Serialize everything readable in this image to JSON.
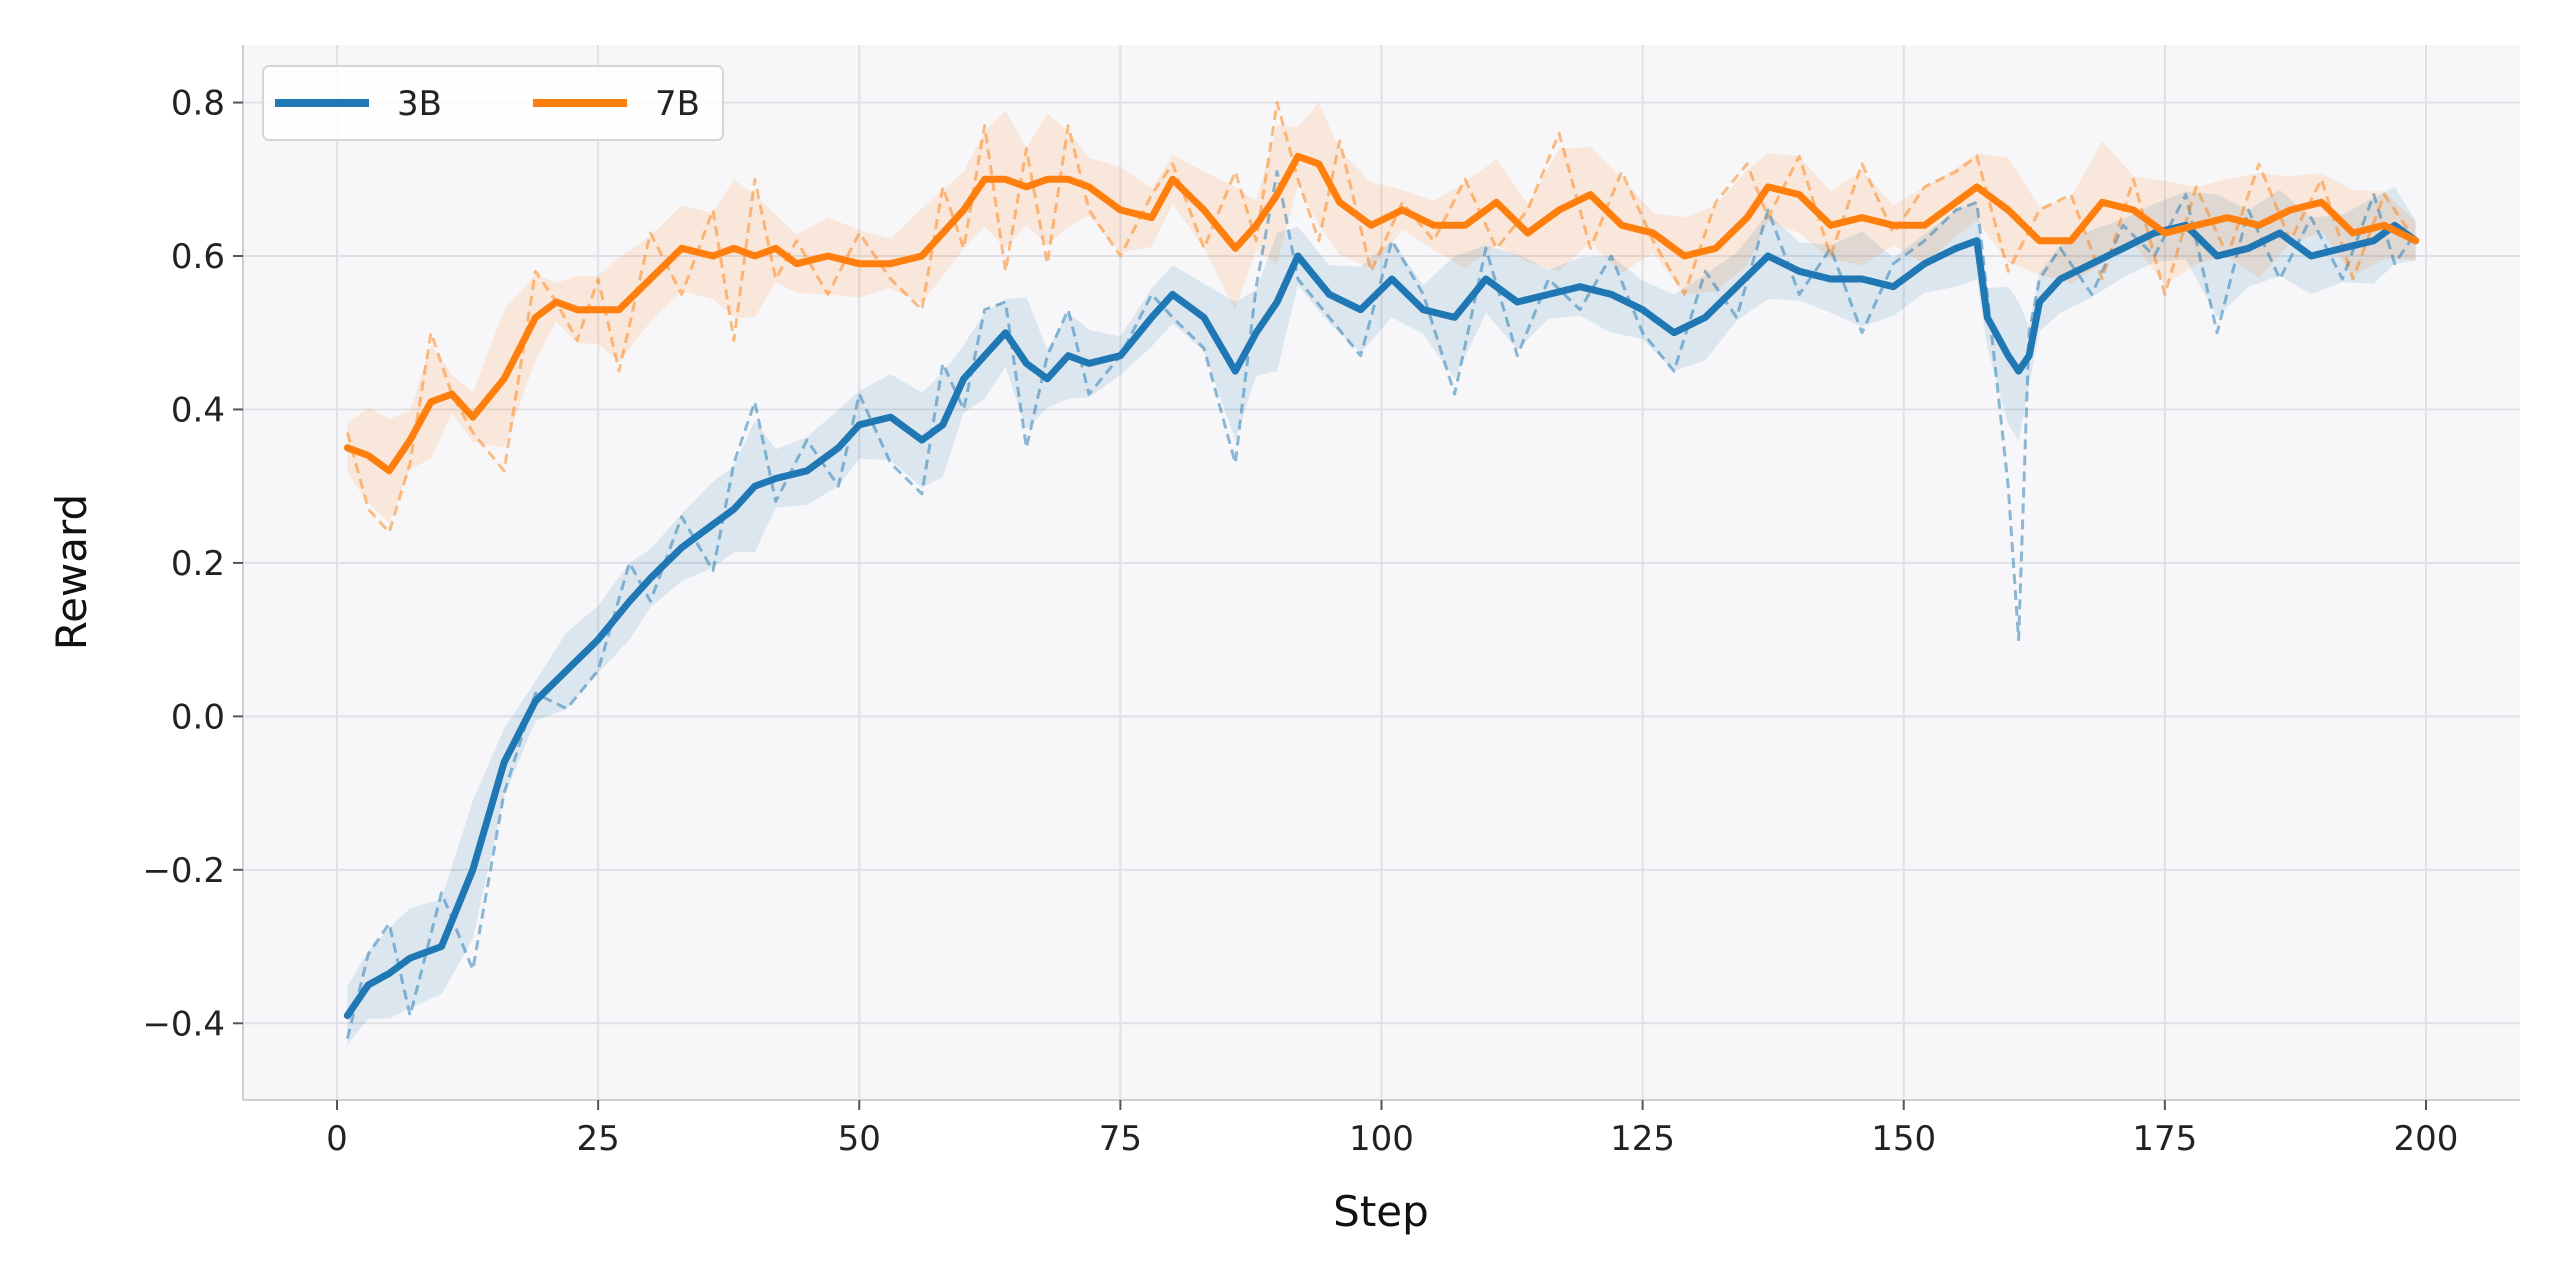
{
  "chart_data": {
    "type": "line",
    "xlabel": "Step",
    "ylabel": "Reward",
    "xlim": [
      -9,
      209
    ],
    "ylim": [
      -0.5,
      0.875
    ],
    "xticks": [
      0,
      25,
      50,
      75,
      100,
      125,
      150,
      175,
      200
    ],
    "yticks": [
      -0.4,
      -0.2,
      0.0,
      0.2,
      0.4,
      0.6,
      0.8
    ],
    "ytick_labels": [
      "−0.4",
      "−0.2",
      "0.0",
      "0.2",
      "0.4",
      "0.6",
      "0.8"
    ],
    "grid": true,
    "legend_position": "top-left",
    "series": [
      {
        "name": "3B",
        "color": "#1f77b4",
        "x": [
          1,
          3,
          5,
          7,
          10,
          13,
          16,
          19,
          22,
          25,
          28,
          30,
          33,
          36,
          38,
          40,
          42,
          45,
          48,
          50,
          53,
          56,
          58,
          60,
          62,
          64,
          66,
          68,
          70,
          72,
          75,
          78,
          80,
          83,
          86,
          88,
          90,
          92,
          95,
          98,
          101,
          104,
          107,
          110,
          113,
          116,
          119,
          122,
          125,
          128,
          131,
          134,
          137,
          140,
          143,
          146,
          149,
          152,
          155,
          157,
          158,
          160,
          161,
          162,
          163,
          165,
          168,
          171,
          174,
          177,
          180,
          183,
          186,
          189,
          192,
          195,
          197,
          199
        ],
        "smoothed": [
          -0.39,
          -0.35,
          -0.335,
          -0.315,
          -0.3,
          -0.2,
          -0.06,
          0.02,
          0.06,
          0.1,
          0.15,
          0.18,
          0.22,
          0.25,
          0.27,
          0.3,
          0.31,
          0.32,
          0.35,
          0.38,
          0.39,
          0.36,
          0.38,
          0.44,
          0.47,
          0.5,
          0.46,
          0.44,
          0.47,
          0.46,
          0.47,
          0.52,
          0.55,
          0.52,
          0.45,
          0.5,
          0.54,
          0.6,
          0.55,
          0.53,
          0.57,
          0.53,
          0.52,
          0.57,
          0.54,
          0.55,
          0.56,
          0.55,
          0.53,
          0.5,
          0.52,
          0.56,
          0.6,
          0.58,
          0.57,
          0.57,
          0.56,
          0.59,
          0.61,
          0.62,
          0.52,
          0.47,
          0.45,
          0.47,
          0.54,
          0.57,
          0.59,
          0.61,
          0.63,
          0.64,
          0.6,
          0.61,
          0.63,
          0.6,
          0.61,
          0.62,
          0.64,
          0.62
        ],
        "raw": [
          -0.42,
          -0.31,
          -0.27,
          -0.39,
          -0.23,
          -0.33,
          -0.1,
          0.03,
          0.01,
          0.06,
          0.2,
          0.15,
          0.26,
          0.19,
          0.33,
          0.41,
          0.28,
          0.36,
          0.3,
          0.42,
          0.33,
          0.29,
          0.46,
          0.4,
          0.53,
          0.54,
          0.35,
          0.47,
          0.53,
          0.42,
          0.47,
          0.55,
          0.52,
          0.48,
          0.33,
          0.56,
          0.71,
          0.57,
          0.52,
          0.47,
          0.62,
          0.55,
          0.42,
          0.61,
          0.47,
          0.57,
          0.53,
          0.6,
          0.5,
          0.45,
          0.58,
          0.52,
          0.66,
          0.55,
          0.61,
          0.5,
          0.59,
          0.62,
          0.66,
          0.67,
          0.55,
          0.3,
          0.1,
          0.5,
          0.57,
          0.61,
          0.55,
          0.64,
          0.6,
          0.68,
          0.5,
          0.66,
          0.57,
          0.65,
          0.57,
          0.68,
          0.59,
          0.63
        ]
      },
      {
        "name": "7B",
        "color": "#ff7f0e",
        "x": [
          1,
          3,
          5,
          7,
          9,
          11,
          13,
          16,
          19,
          21,
          23,
          25,
          27,
          30,
          33,
          36,
          38,
          40,
          42,
          44,
          47,
          50,
          53,
          56,
          58,
          60,
          62,
          64,
          66,
          68,
          70,
          72,
          75,
          78,
          80,
          83,
          86,
          88,
          90,
          92,
          94,
          96,
          99,
          102,
          105,
          108,
          111,
          114,
          117,
          120,
          123,
          126,
          129,
          132,
          135,
          137,
          140,
          143,
          146,
          149,
          152,
          155,
          157,
          160,
          163,
          166,
          169,
          172,
          175,
          178,
          181,
          184,
          187,
          190,
          193,
          196,
          199
        ],
        "smoothed": [
          0.35,
          0.34,
          0.32,
          0.36,
          0.41,
          0.42,
          0.39,
          0.44,
          0.52,
          0.54,
          0.53,
          0.53,
          0.53,
          0.57,
          0.61,
          0.6,
          0.61,
          0.6,
          0.61,
          0.59,
          0.6,
          0.59,
          0.59,
          0.6,
          0.63,
          0.66,
          0.7,
          0.7,
          0.69,
          0.7,
          0.7,
          0.69,
          0.66,
          0.65,
          0.7,
          0.66,
          0.61,
          0.64,
          0.68,
          0.73,
          0.72,
          0.67,
          0.64,
          0.66,
          0.64,
          0.64,
          0.67,
          0.63,
          0.66,
          0.68,
          0.64,
          0.63,
          0.6,
          0.61,
          0.65,
          0.69,
          0.68,
          0.64,
          0.65,
          0.64,
          0.64,
          0.67,
          0.69,
          0.66,
          0.62,
          0.62,
          0.67,
          0.66,
          0.63,
          0.64,
          0.65,
          0.64,
          0.66,
          0.67,
          0.63,
          0.64,
          0.62
        ],
        "raw": [
          0.37,
          0.27,
          0.24,
          0.33,
          0.5,
          0.42,
          0.37,
          0.32,
          0.58,
          0.54,
          0.49,
          0.57,
          0.45,
          0.63,
          0.55,
          0.66,
          0.49,
          0.7,
          0.57,
          0.62,
          0.55,
          0.63,
          0.57,
          0.53,
          0.69,
          0.61,
          0.77,
          0.58,
          0.74,
          0.59,
          0.77,
          0.66,
          0.6,
          0.68,
          0.72,
          0.61,
          0.71,
          0.62,
          0.8,
          0.7,
          0.62,
          0.75,
          0.58,
          0.67,
          0.62,
          0.7,
          0.61,
          0.66,
          0.76,
          0.61,
          0.71,
          0.62,
          0.55,
          0.67,
          0.72,
          0.65,
          0.73,
          0.6,
          0.72,
          0.63,
          0.69,
          0.71,
          0.73,
          0.58,
          0.66,
          0.68,
          0.57,
          0.7,
          0.55,
          0.69,
          0.6,
          0.72,
          0.62,
          0.7,
          0.57,
          0.68,
          0.62
        ]
      }
    ]
  }
}
